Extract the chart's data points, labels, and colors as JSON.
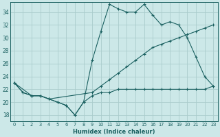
{
  "xlabel": "Humidex (Indice chaleur)",
  "bg_color": "#cce8e8",
  "grid_color": "#aacccc",
  "line_color": "#1a6060",
  "xlim": [
    -0.5,
    23.5
  ],
  "ylim": [
    17,
    35.5
  ],
  "xticks": [
    0,
    1,
    2,
    3,
    4,
    5,
    6,
    7,
    8,
    9,
    10,
    11,
    12,
    13,
    14,
    15,
    16,
    17,
    18,
    19,
    20,
    21,
    22,
    23
  ],
  "yticks": [
    18,
    20,
    22,
    24,
    26,
    28,
    30,
    32,
    34
  ],
  "line_dip_x": [
    0,
    1,
    2,
    3,
    4,
    5,
    6,
    7,
    8,
    9,
    10,
    11,
    12,
    13,
    14,
    15,
    16,
    17,
    18,
    19,
    20,
    21,
    22,
    23
  ],
  "line_dip_y": [
    23,
    21.5,
    21,
    21,
    20.5,
    20,
    19.5,
    18,
    20,
    21,
    21.5,
    21.5,
    22,
    22,
    22,
    22,
    22,
    22,
    22,
    22,
    22,
    22,
    22,
    22.5
  ],
  "line_peak_x": [
    0,
    1,
    2,
    3,
    4,
    5,
    6,
    7,
    8,
    9,
    10,
    11,
    12,
    13,
    14,
    15,
    16,
    17,
    18,
    19,
    20,
    21,
    22,
    23
  ],
  "line_peak_y": [
    23,
    21.5,
    21,
    21,
    20.5,
    20,
    19.5,
    18,
    20,
    26.5,
    31,
    35.2,
    34.5,
    34,
    34,
    35.2,
    33.5,
    32,
    32.5,
    32,
    30,
    27,
    24,
    22.5
  ],
  "line_diag_x": [
    0,
    2,
    3,
    4,
    9,
    10,
    11,
    12,
    13,
    14,
    15,
    16,
    17,
    18,
    19,
    20,
    21,
    22,
    23
  ],
  "line_diag_y": [
    23,
    21,
    21,
    20.5,
    21.5,
    22.5,
    23.5,
    24.5,
    25.5,
    26.5,
    27.5,
    28.5,
    29,
    29.5,
    30,
    30.5,
    31,
    31.5,
    32
  ]
}
